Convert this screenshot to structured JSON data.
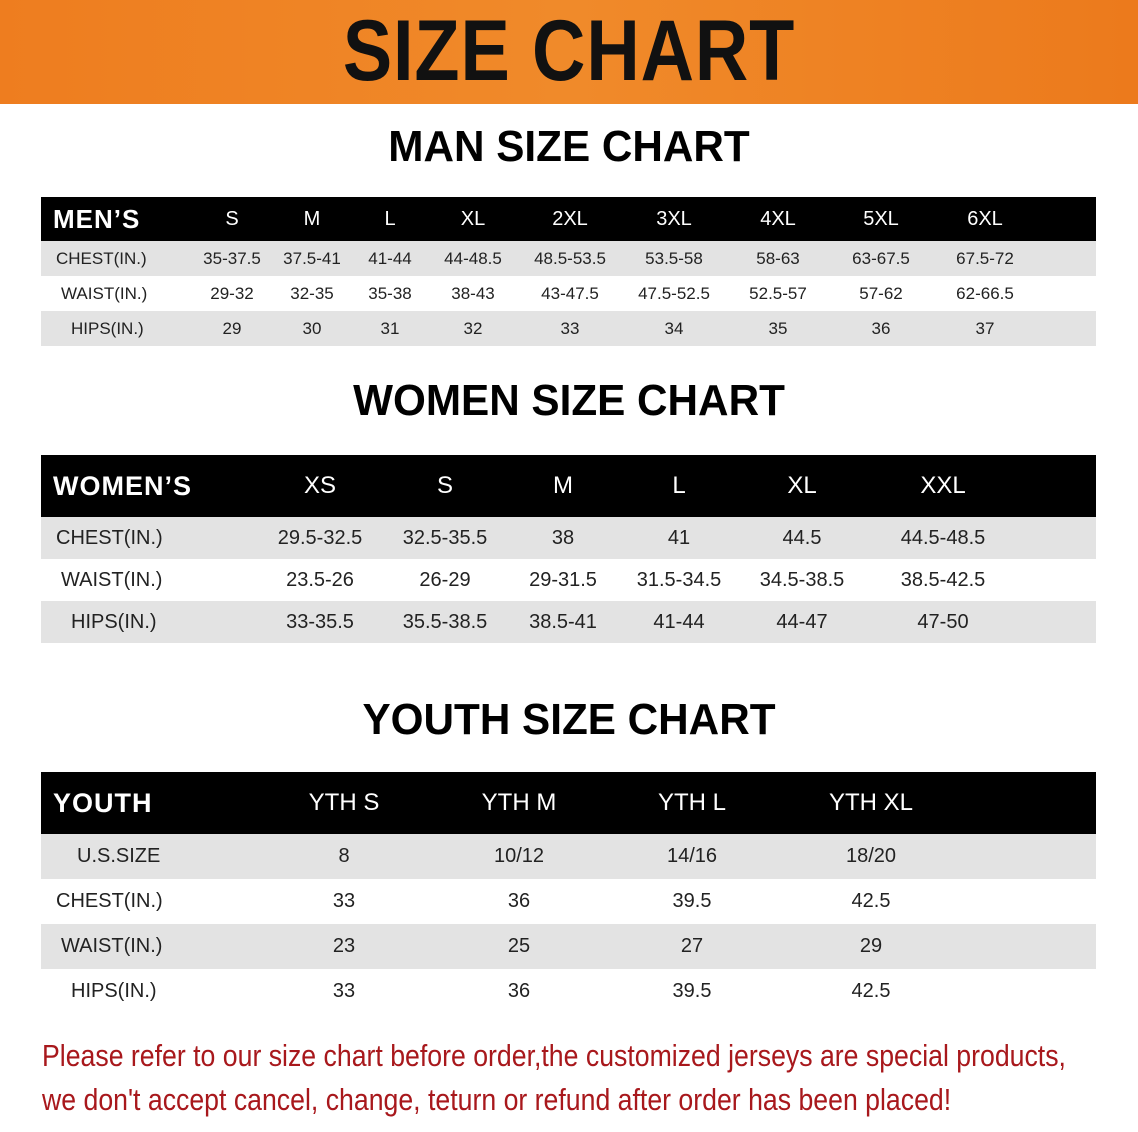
{
  "header": {
    "title": "SIZE CHART",
    "banner_color": "#ee7d1f"
  },
  "men": {
    "title": "MAN SIZE CHART",
    "label": "MEN’S",
    "sizes": [
      "S",
      "M",
      "L",
      "XL",
      "2XL",
      "3XL",
      "4XL",
      "5XL",
      "6XL"
    ],
    "rows": [
      {
        "label": "CHEST(IN.)",
        "values": [
          "35-37.5",
          "37.5-41",
          "41-44",
          "44-48.5",
          "48.5-53.5",
          "53.5-58",
          "58-63",
          "63-67.5",
          "67.5-72"
        ]
      },
      {
        "label": "WAIST(IN.)",
        "values": [
          "29-32",
          "32-35",
          "35-38",
          "38-43",
          "43-47.5",
          "47.5-52.5",
          "52.5-57",
          "57-62",
          "62-66.5"
        ]
      },
      {
        "label": "HIPS(IN.)",
        "values": [
          "29",
          "30",
          "31",
          "32",
          "33",
          "34",
          "35",
          "36",
          "37"
        ]
      }
    ]
  },
  "women": {
    "title": "WOMEN SIZE CHART",
    "label": "WOMEN’S",
    "sizes": [
      "XS",
      "S",
      "M",
      "L",
      "XL",
      "XXL"
    ],
    "rows": [
      {
        "label": "CHEST(IN.)",
        "values": [
          "29.5-32.5",
          "32.5-35.5",
          "38",
          "41",
          "44.5",
          "44.5-48.5"
        ]
      },
      {
        "label": "WAIST(IN.)",
        "values": [
          "23.5-26",
          "26-29",
          "29-31.5",
          "31.5-34.5",
          "34.5-38.5",
          "38.5-42.5"
        ]
      },
      {
        "label": "HIPS(IN.)",
        "values": [
          "33-35.5",
          "35.5-38.5",
          "38.5-41",
          "41-44",
          "44-47",
          "47-50"
        ]
      }
    ]
  },
  "youth": {
    "title": "YOUTH SIZE CHART",
    "label": "YOUTH",
    "sizes": [
      "YTH S",
      "YTH M",
      "YTH L",
      "YTH XL"
    ],
    "rows": [
      {
        "label": "U.S.SIZE",
        "values": [
          "8",
          "10/12",
          "14/16",
          "18/20"
        ]
      },
      {
        "label": "CHEST(IN.)",
        "values": [
          "33",
          "36",
          "39.5",
          "42.5"
        ]
      },
      {
        "label": "WAIST(IN.)",
        "values": [
          "23",
          "25",
          "27",
          "29"
        ]
      },
      {
        "label": "HIPS(IN.)",
        "values": [
          "33",
          "36",
          "39.5",
          "42.5"
        ]
      }
    ]
  },
  "notice": {
    "line1": "Please refer to our size chart before order,the customized jerseys are special products,",
    "line2": "we don't accept cancel, change, teturn or refund after order has been placed!",
    "color": "#a8181c"
  }
}
